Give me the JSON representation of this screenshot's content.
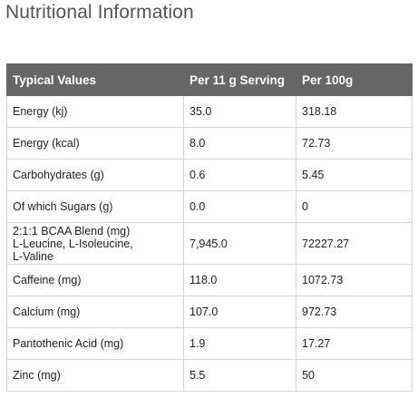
{
  "page": {
    "title": "Nutritional Information"
  },
  "table": {
    "headers": [
      "Typical Values",
      "Per 11 g Serving",
      "Per 100g"
    ],
    "rows": [
      {
        "label": "Energy (kj)",
        "serving": "35.0",
        "per100g": "318.18"
      },
      {
        "label": "Energy (kcal)",
        "serving": "8.0",
        "per100g": "72.73"
      },
      {
        "label": "Carbohydrates (g)",
        "serving": "0.6",
        "per100g": "5.45"
      },
      {
        "label": "Of which Sugars (g)",
        "serving": "0.0",
        "per100g": "0"
      },
      {
        "label_lines": [
          "2:1:1 BCAA Blend (mg)",
          "L-Leucine, L-Isoleucine,",
          "L-Valine"
        ],
        "serving": "7,945.0",
        "per100g": "72227.27"
      },
      {
        "label": "Caffeine (mg)",
        "serving": "118.0",
        "per100g": "1072.73"
      },
      {
        "label": "Calcium (mg)",
        "serving": "107.0",
        "per100g": "972.73"
      },
      {
        "label": "Pantothenic Acid (mg)",
        "serving": "1.9",
        "per100g": "17.27"
      },
      {
        "label": "Zinc (mg)",
        "serving": "5.5",
        "per100g": "50"
      }
    ]
  },
  "colors": {
    "header_background": "#666666",
    "header_text": "#ffffff",
    "title_text": "#555555",
    "grid_line": "#d5d5d5"
  }
}
